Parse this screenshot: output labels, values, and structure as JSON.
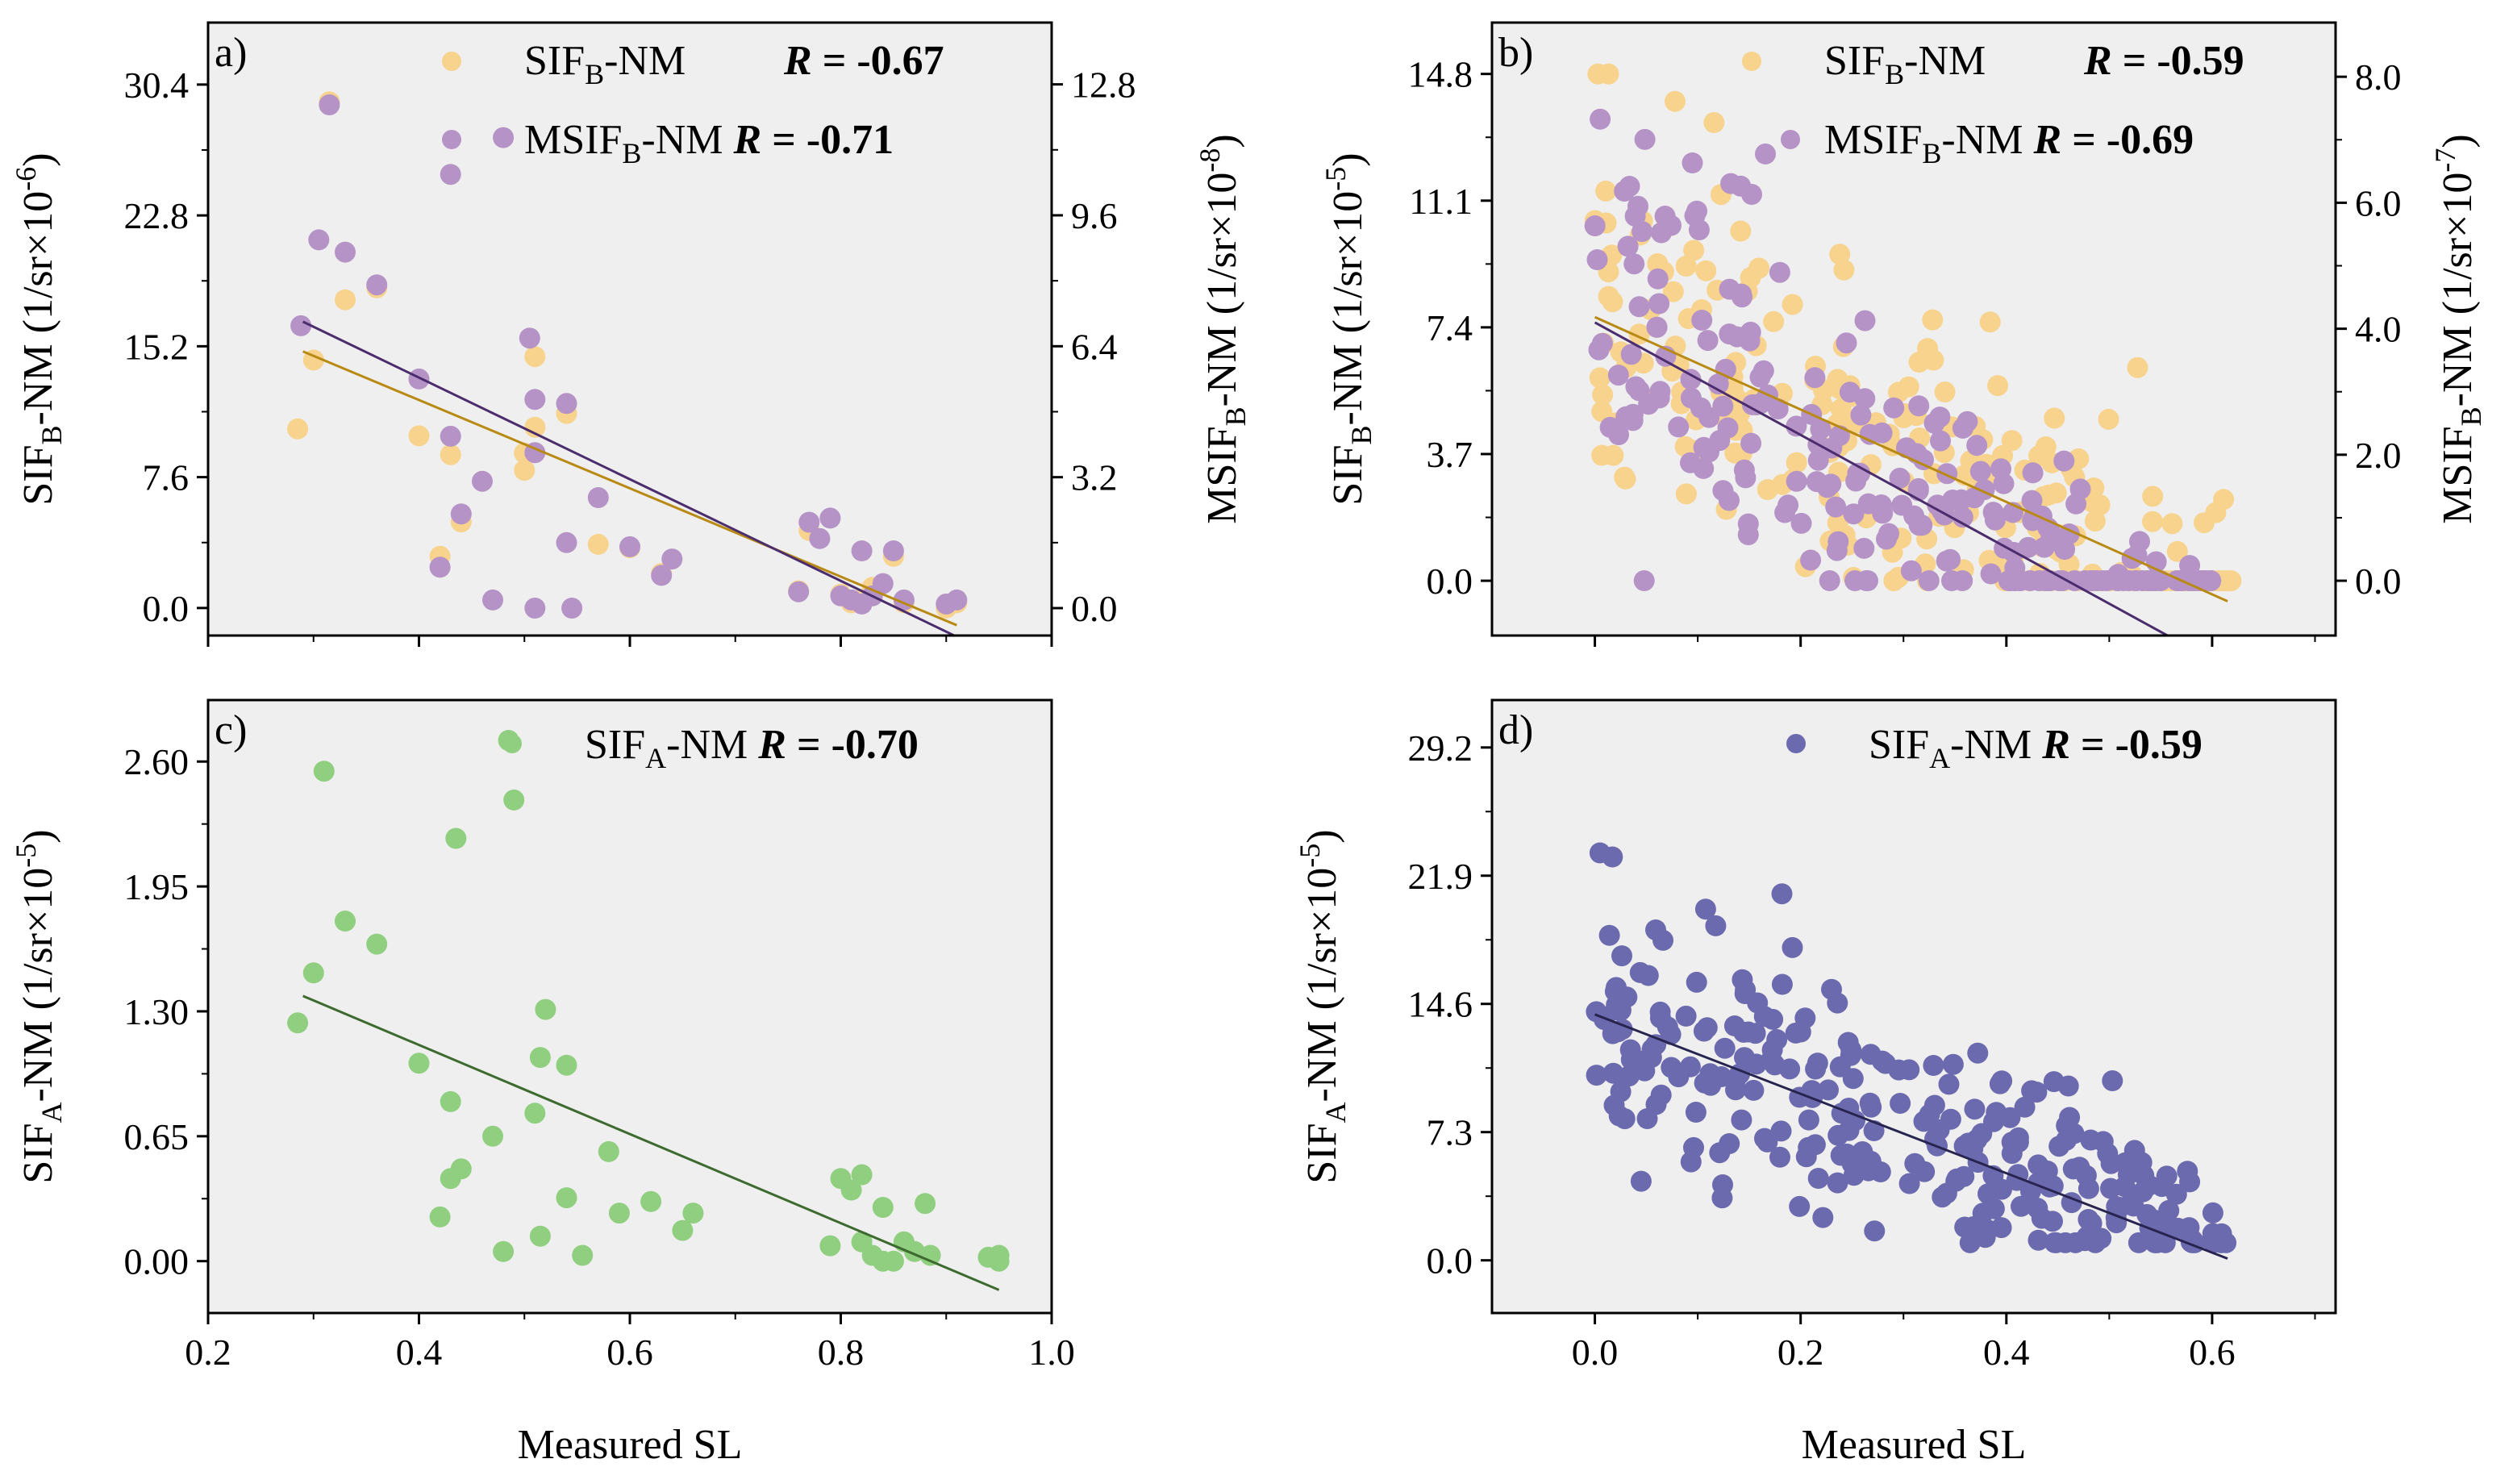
{
  "colors": {
    "sifb": "#f7d38d",
    "msifb": "#b593c6",
    "sifa_green": "#8fcf7f",
    "sifa_purple": "#6c6aae",
    "fit_sifb": "#b98a13",
    "fit_msifb": "#4b2d6d",
    "fit_green": "#3d6b2f",
    "fit_purple": "#27244f",
    "panel_bg": "#efefef"
  },
  "xlabel": "Measured SL",
  "chart_data": [
    {
      "type": "scatter",
      "panel_label": "a)",
      "xlim": [
        0.2,
        1.0
      ],
      "xticks": [
        0.2,
        0.4,
        0.6,
        0.8,
        1.0
      ],
      "xtick_labels_shown": false,
      "ylabel": "SIF_B-NM (1/sr×10^-6)",
      "ylim": [
        -1.6,
        34.0
      ],
      "yticks": [
        "0.0",
        "7.6",
        "15.2",
        "22.8",
        "30.4"
      ],
      "ylabel_right": "MSIF_B-NM (1/sr×10^-8)",
      "ylim_right": [
        -0.67,
        14.31
      ],
      "yticks_right": [
        "0.0",
        "3.2",
        "6.4",
        "9.6",
        "12.8"
      ],
      "series": [
        {
          "name": "SIF_B-NM",
          "r_label": "R = -0.67",
          "axis": "left",
          "color_key": "sifb",
          "fit": [
            [
              0.29,
              14.9
            ],
            [
              0.91,
              -1.0
            ]
          ],
          "points": [
            [
              0.285,
              10.4
            ],
            [
              0.3,
              14.4
            ],
            [
              0.315,
              29.4
            ],
            [
              0.33,
              17.9
            ],
            [
              0.36,
              18.6
            ],
            [
              0.4,
              10.0
            ],
            [
              0.42,
              3.0
            ],
            [
              0.43,
              8.9
            ],
            [
              0.44,
              5.0
            ],
            [
              0.5,
              8.0
            ],
            [
              0.5,
              9.0
            ],
            [
              0.51,
              14.6
            ],
            [
              0.51,
              10.5
            ],
            [
              0.54,
              11.3
            ],
            [
              0.57,
              3.7
            ],
            [
              0.6,
              3.5
            ],
            [
              0.63,
              2.0
            ],
            [
              0.76,
              1.0
            ],
            [
              0.77,
              4.5
            ],
            [
              0.8,
              0.8
            ],
            [
              0.81,
              0.3
            ],
            [
              0.82,
              0.5
            ],
            [
              0.83,
              1.2
            ],
            [
              0.85,
              3.0
            ],
            [
              0.86,
              0.3
            ],
            [
              0.9,
              0.0
            ],
            [
              0.91,
              0.3
            ]
          ]
        },
        {
          "name": "MSIF_B-NM",
          "r_label": "R = -0.71",
          "axis": "right",
          "color_key": "msifb",
          "fit": [
            [
              0.29,
              7.0
            ],
            [
              0.91,
              -0.7
            ]
          ],
          "points": [
            [
              0.288,
              6.9
            ],
            [
              0.305,
              9.0
            ],
            [
              0.315,
              12.3
            ],
            [
              0.33,
              8.7
            ],
            [
              0.36,
              7.9
            ],
            [
              0.4,
              5.6
            ],
            [
              0.42,
              1.0
            ],
            [
              0.43,
              4.2
            ],
            [
              0.43,
              10.6
            ],
            [
              0.44,
              2.3
            ],
            [
              0.46,
              3.1
            ],
            [
              0.47,
              0.2
            ],
            [
              0.48,
              11.5
            ],
            [
              0.505,
              6.6
            ],
            [
              0.51,
              3.8
            ],
            [
              0.51,
              5.1
            ],
            [
              0.51,
              0.0
            ],
            [
              0.54,
              5.0
            ],
            [
              0.54,
              1.6
            ],
            [
              0.545,
              0.0
            ],
            [
              0.57,
              2.7
            ],
            [
              0.6,
              1.5
            ],
            [
              0.63,
              0.8
            ],
            [
              0.64,
              1.2
            ],
            [
              0.76,
              0.4
            ],
            [
              0.77,
              2.1
            ],
            [
              0.78,
              1.7
            ],
            [
              0.79,
              2.2
            ],
            [
              0.8,
              0.3
            ],
            [
              0.81,
              0.2
            ],
            [
              0.82,
              1.4
            ],
            [
              0.82,
              0.1
            ],
            [
              0.83,
              0.3
            ],
            [
              0.84,
              0.6
            ],
            [
              0.85,
              1.4
            ],
            [
              0.86,
              0.2
            ],
            [
              0.9,
              0.1
            ],
            [
              0.91,
              0.2
            ]
          ]
        }
      ]
    },
    {
      "type": "scatter",
      "panel_label": "b)",
      "xlim": [
        -0.1,
        0.72
      ],
      "xticks": [
        0.0,
        0.2,
        0.4,
        0.6
      ],
      "xtick_labels_shown": false,
      "ylabel": "SIF_B-NM (1/sr×10^-5)",
      "ylim": [
        -1.6,
        16.3
      ],
      "yticks": [
        "0.0",
        "3.7",
        "7.4",
        "11.1",
        "14.8"
      ],
      "ylabel_right": "MSIF_B-NM (1/sr×10^-7)",
      "ylim_right": [
        -0.87,
        8.86
      ],
      "yticks_right": [
        "0.0",
        "2.0",
        "4.0",
        "6.0",
        "8.0"
      ],
      "series": [
        {
          "name": "SIF_B-NM",
          "r_label": "R = -0.59",
          "axis": "left",
          "color_key": "sifb",
          "fit": [
            [
              0.0,
              7.7
            ],
            [
              0.615,
              -0.6
            ]
          ],
          "point_cloud": {
            "count": 230,
            "x_range": [
              0.0,
              0.62
            ],
            "intercept": 7.7,
            "slope": -13.5,
            "spread": 2.8,
            "min": 0.0,
            "max": 14.8
          }
        },
        {
          "name": "MSIF_B-NM",
          "r_label": "R = -0.69",
          "axis": "right",
          "color_key": "msifb",
          "fit": [
            [
              0.0,
              4.1
            ],
            [
              0.56,
              -0.9
            ]
          ],
          "point_cloud": {
            "count": 230,
            "x_range": [
              0.0,
              0.6
            ],
            "intercept": 4.1,
            "slope": -8.9,
            "spread": 1.4,
            "min": 0.0,
            "max": 7.6
          }
        }
      ]
    },
    {
      "type": "scatter",
      "panel_label": "c)",
      "xlim": [
        0.2,
        1.0
      ],
      "xticks": [
        0.2,
        0.4,
        0.6,
        0.8,
        1.0
      ],
      "xtick_labels": [
        "0.2",
        "0.4",
        "0.6",
        "0.8",
        "1.0"
      ],
      "xtick_labels_shown": true,
      "xlabel": "Measured SL",
      "ylabel": "SIF_A-NM (1/sr×10^-5)",
      "ylim": [
        -0.27,
        2.92
      ],
      "yticks": [
        "0.00",
        "0.65",
        "1.30",
        "1.95",
        "2.60"
      ],
      "series": [
        {
          "name": "SIF_A-NM",
          "r_label": "R = -0.70",
          "axis": "left",
          "color_key": "sifa_green",
          "fit": [
            [
              0.29,
              1.38
            ],
            [
              0.95,
              -0.15
            ]
          ],
          "points": [
            [
              0.285,
              1.24
            ],
            [
              0.3,
              1.5
            ],
            [
              0.31,
              2.55
            ],
            [
              0.33,
              1.77
            ],
            [
              0.36,
              1.65
            ],
            [
              0.4,
              1.03
            ],
            [
              0.42,
              0.23
            ],
            [
              0.43,
              0.43
            ],
            [
              0.43,
              0.83
            ],
            [
              0.435,
              2.2
            ],
            [
              0.44,
              0.48
            ],
            [
              0.47,
              0.65
            ],
            [
              0.48,
              0.05
            ],
            [
              0.485,
              2.71
            ],
            [
              0.49,
              2.4
            ],
            [
              0.51,
              0.77
            ],
            [
              0.515,
              1.06
            ],
            [
              0.515,
              0.13
            ],
            [
              0.52,
              1.31
            ],
            [
              0.54,
              1.02
            ],
            [
              0.54,
              0.33
            ],
            [
              0.555,
              0.03
            ],
            [
              0.58,
              0.57
            ],
            [
              0.59,
              0.25
            ],
            [
              0.62,
              0.31
            ],
            [
              0.65,
              0.16
            ],
            [
              0.66,
              0.25
            ],
            [
              0.79,
              0.08
            ],
            [
              0.8,
              0.43
            ],
            [
              0.81,
              0.37
            ],
            [
              0.82,
              0.45
            ],
            [
              0.82,
              0.1
            ],
            [
              0.83,
              0.03
            ],
            [
              0.84,
              0.28
            ],
            [
              0.84,
              0.0
            ],
            [
              0.85,
              0.0
            ],
            [
              0.86,
              0.1
            ],
            [
              0.87,
              0.05
            ],
            [
              0.88,
              0.3
            ],
            [
              0.885,
              0.03
            ],
            [
              0.94,
              0.02
            ],
            [
              0.95,
              0.0
            ],
            [
              0.95,
              0.03
            ]
          ]
        }
      ]
    },
    {
      "type": "scatter",
      "panel_label": "d)",
      "xlim": [
        -0.1,
        0.72
      ],
      "xticks": [
        0.0,
        0.2,
        0.4,
        0.6
      ],
      "xtick_labels": [
        "0.0",
        "0.2",
        "0.4",
        "0.6"
      ],
      "xtick_labels_shown": true,
      "xlabel": "Measured SL",
      "ylabel": "SIF_A-NM (1/sr×10^-5)",
      "ylim": [
        -3.0,
        31.9
      ],
      "yticks": [
        "0.0",
        "7.3",
        "14.6",
        "21.9",
        "29.2"
      ],
      "series": [
        {
          "name": "SIF_A-NM",
          "r_label": "R = -0.59",
          "axis": "left",
          "color_key": "sifa_purple",
          "fit": [
            [
              0.0,
              14.0
            ],
            [
              0.615,
              0.1
            ]
          ],
          "point_cloud": {
            "count": 270,
            "x_range": [
              0.0,
              0.62
            ],
            "intercept": 13.6,
            "slope": -20.0,
            "spread": 3.8,
            "min": 1.0,
            "max": 29.0
          }
        }
      ]
    }
  ]
}
